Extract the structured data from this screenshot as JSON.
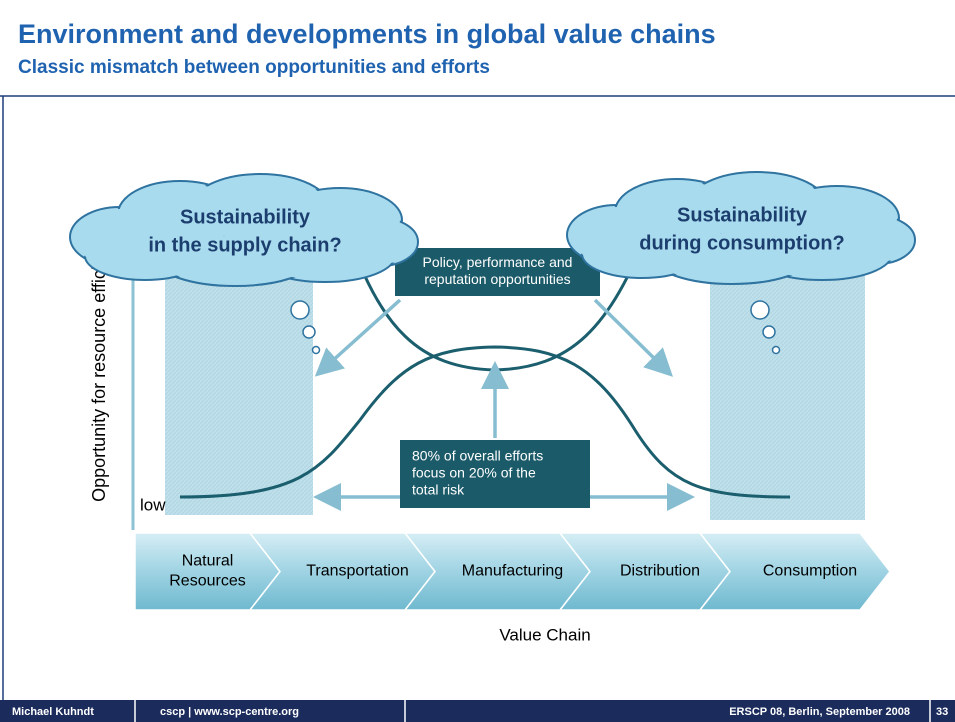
{
  "header": {
    "title": "Environment and developments in global value chains",
    "subtitle": "Classic mismatch between opportunities and efforts"
  },
  "diagram": {
    "y_axis_label": "Opportunity for resource efficiency",
    "low_label": "low",
    "clouds": [
      {
        "lines": [
          "Sustainability",
          "in the supply chain?"
        ]
      },
      {
        "lines": [
          "Sustainability",
          "during consumption?"
        ]
      }
    ],
    "boxes": [
      {
        "lines": [
          "Policy, performance and",
          "reputation opportunities"
        ]
      },
      {
        "lines": [
          "80% of overall efforts",
          "focus on 20% of the",
          "total risk"
        ]
      }
    ],
    "stages": [
      {
        "lines": [
          "Natural",
          "Resources"
        ]
      },
      {
        "lines": [
          "Transportation"
        ]
      },
      {
        "lines": [
          "Manufacturing"
        ]
      },
      {
        "lines": [
          "Distribution"
        ]
      },
      {
        "lines": [
          "Consumption"
        ]
      }
    ],
    "x_axis_label": "Value Chain"
  },
  "footer": {
    "author": "Michael Kuhndt",
    "org": "cscp | www.scp-centre.org",
    "event": "ERSCP 08, Berlin, September 2008",
    "page": "33"
  }
}
